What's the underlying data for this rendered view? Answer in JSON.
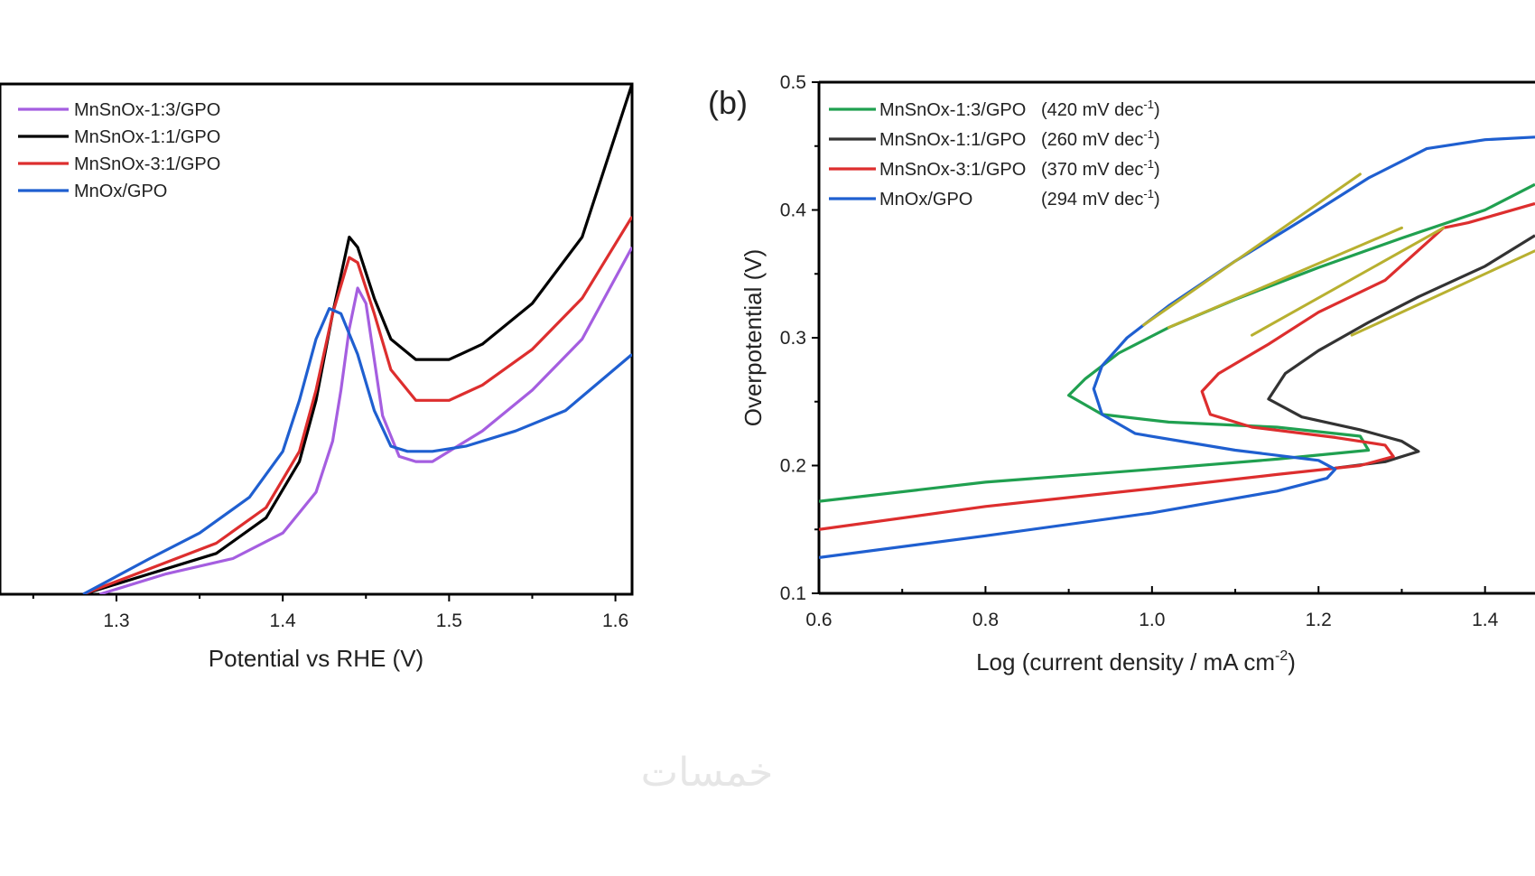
{
  "watermark": "خمسات",
  "chart_data": [
    {
      "type": "line",
      "panel_label": "",
      "title": "",
      "xlabel": "Potential vs RHE (V)",
      "ylabel": "",
      "xlim": [
        1.23,
        1.61
      ],
      "ylim": [
        0,
        1
      ],
      "x_ticks": [
        1.3,
        1.4,
        1.5,
        1.6
      ],
      "x_tick_labels": [
        "1.3",
        "1.4",
        "1.5",
        "1.6"
      ],
      "y_ticks_shown": false,
      "legend_position": "top-left",
      "series": [
        {
          "name": "MnSnOx-1:3/GPO",
          "color": "#a55ee0",
          "points": [
            [
              1.29,
              0.0
            ],
            [
              1.33,
              0.04
            ],
            [
              1.37,
              0.07
            ],
            [
              1.4,
              0.12
            ],
            [
              1.42,
              0.2
            ],
            [
              1.43,
              0.3
            ],
            [
              1.435,
              0.4
            ],
            [
              1.44,
              0.52
            ],
            [
              1.445,
              0.6
            ],
            [
              1.45,
              0.57
            ],
            [
              1.455,
              0.46
            ],
            [
              1.46,
              0.35
            ],
            [
              1.47,
              0.27
            ],
            [
              1.48,
              0.26
            ],
            [
              1.49,
              0.26
            ],
            [
              1.5,
              0.28
            ],
            [
              1.52,
              0.32
            ],
            [
              1.55,
              0.4
            ],
            [
              1.58,
              0.5
            ],
            [
              1.61,
              0.68
            ]
          ]
        },
        {
          "name": "MnSnOx-1:1/GPO",
          "color": "#000000",
          "points": [
            [
              1.28,
              0.0
            ],
            [
              1.32,
              0.04
            ],
            [
              1.36,
              0.08
            ],
            [
              1.39,
              0.15
            ],
            [
              1.41,
              0.26
            ],
            [
              1.42,
              0.38
            ],
            [
              1.43,
              0.55
            ],
            [
              1.44,
              0.7
            ],
            [
              1.445,
              0.68
            ],
            [
              1.455,
              0.58
            ],
            [
              1.465,
              0.5
            ],
            [
              1.48,
              0.46
            ],
            [
              1.5,
              0.46
            ],
            [
              1.52,
              0.49
            ],
            [
              1.55,
              0.57
            ],
            [
              1.58,
              0.7
            ],
            [
              1.61,
              1.0
            ]
          ]
        },
        {
          "name": "MnSnOx-3:1/GPO",
          "color": "#dd2e2e",
          "points": [
            [
              1.28,
              0.0
            ],
            [
              1.32,
              0.05
            ],
            [
              1.36,
              0.1
            ],
            [
              1.39,
              0.17
            ],
            [
              1.41,
              0.28
            ],
            [
              1.42,
              0.4
            ],
            [
              1.43,
              0.55
            ],
            [
              1.44,
              0.66
            ],
            [
              1.445,
              0.65
            ],
            [
              1.455,
              0.55
            ],
            [
              1.465,
              0.44
            ],
            [
              1.48,
              0.38
            ],
            [
              1.5,
              0.38
            ],
            [
              1.52,
              0.41
            ],
            [
              1.55,
              0.48
            ],
            [
              1.58,
              0.58
            ],
            [
              1.61,
              0.74
            ]
          ]
        },
        {
          "name": "MnOx/GPO",
          "color": "#1f5fd0",
          "points": [
            [
              1.28,
              0.0
            ],
            [
              1.32,
              0.07
            ],
            [
              1.35,
              0.12
            ],
            [
              1.38,
              0.19
            ],
            [
              1.4,
              0.28
            ],
            [
              1.41,
              0.38
            ],
            [
              1.42,
              0.5
            ],
            [
              1.428,
              0.56
            ],
            [
              1.435,
              0.55
            ],
            [
              1.445,
              0.47
            ],
            [
              1.455,
              0.36
            ],
            [
              1.465,
              0.29
            ],
            [
              1.475,
              0.28
            ],
            [
              1.49,
              0.28
            ],
            [
              1.51,
              0.29
            ],
            [
              1.54,
              0.32
            ],
            [
              1.57,
              0.36
            ],
            [
              1.61,
              0.47
            ]
          ]
        }
      ]
    },
    {
      "type": "line",
      "panel_label": "(b)",
      "title": "",
      "xlabel": "Log (current density / mA cm-2)",
      "xlabel_parts": {
        "main": "Log (current density / mA cm",
        "sup": "-2",
        "end": ")"
      },
      "ylabel": "Overpotential (V)",
      "xlim": [
        0.6,
        1.46
      ],
      "ylim": [
        0.1,
        0.5
      ],
      "x_ticks": [
        0.6,
        0.8,
        1.0,
        1.2,
        1.4
      ],
      "x_tick_labels": [
        "0.6",
        "0.8",
        "1.0",
        "1.2",
        "1.4"
      ],
      "y_ticks": [
        0.1,
        0.2,
        0.3,
        0.4,
        0.5
      ],
      "y_tick_labels": [
        "0.1",
        "0.2",
        "0.3",
        "0.4",
        "0.5"
      ],
      "legend_position": "top-left",
      "series": [
        {
          "name": "MnSnOx-1:3/GPO",
          "tafel_slope": "(420 mV dec",
          "sup": "-1",
          "end": ")",
          "color": "#20a050",
          "points": [
            [
              0.6,
              0.172
            ],
            [
              0.8,
              0.187
            ],
            [
              1.0,
              0.197
            ],
            [
              1.15,
              0.205
            ],
            [
              1.26,
              0.212
            ],
            [
              1.25,
              0.223
            ],
            [
              1.15,
              0.23
            ],
            [
              1.02,
              0.234
            ],
            [
              0.94,
              0.24
            ],
            [
              0.9,
              0.255
            ],
            [
              0.92,
              0.268
            ],
            [
              0.96,
              0.288
            ],
            [
              1.02,
              0.308
            ],
            [
              1.1,
              0.33
            ],
            [
              1.2,
              0.355
            ],
            [
              1.3,
              0.378
            ],
            [
              1.4,
              0.4
            ],
            [
              1.46,
              0.42
            ]
          ]
        },
        {
          "name": "MnSnOx-1:1/GPO",
          "tafel_slope": "(260 mV dec",
          "sup": "-1",
          "end": ")",
          "color": "#333333",
          "points": [
            [
              1.22,
              0.198
            ],
            [
              1.28,
              0.203
            ],
            [
              1.32,
              0.211
            ],
            [
              1.3,
              0.219
            ],
            [
              1.25,
              0.228
            ],
            [
              1.18,
              0.238
            ],
            [
              1.14,
              0.252
            ],
            [
              1.16,
              0.272
            ],
            [
              1.2,
              0.29
            ],
            [
              1.26,
              0.312
            ],
            [
              1.32,
              0.332
            ],
            [
              1.4,
              0.356
            ],
            [
              1.46,
              0.38
            ]
          ]
        },
        {
          "name": "MnSnOx-3:1/GPO",
          "tafel_slope": "(370 mV dec",
          "sup": "-1",
          "end": ")",
          "color": "#dd2e2e",
          "points": [
            [
              0.6,
              0.15
            ],
            [
              0.8,
              0.168
            ],
            [
              1.0,
              0.182
            ],
            [
              1.15,
              0.193
            ],
            [
              1.25,
              0.2
            ],
            [
              1.29,
              0.207
            ],
            [
              1.28,
              0.216
            ],
            [
              1.22,
              0.222
            ],
            [
              1.12,
              0.23
            ],
            [
              1.07,
              0.24
            ],
            [
              1.06,
              0.258
            ],
            [
              1.08,
              0.272
            ],
            [
              1.14,
              0.295
            ],
            [
              1.2,
              0.32
            ],
            [
              1.28,
              0.345
            ],
            [
              1.35,
              0.386
            ],
            [
              1.38,
              0.39
            ],
            [
              1.46,
              0.405
            ]
          ]
        },
        {
          "name": "MnOx/GPO",
          "tafel_slope": "(294 mV dec",
          "sup": "-1",
          "end": ")",
          "color": "#1f5fd0",
          "points": [
            [
              0.6,
              0.128
            ],
            [
              0.8,
              0.145
            ],
            [
              1.0,
              0.163
            ],
            [
              1.15,
              0.18
            ],
            [
              1.21,
              0.19
            ],
            [
              1.22,
              0.197
            ],
            [
              1.2,
              0.204
            ],
            [
              1.1,
              0.212
            ],
            [
              0.98,
              0.225
            ],
            [
              0.94,
              0.24
            ],
            [
              0.93,
              0.26
            ],
            [
              0.94,
              0.278
            ],
            [
              0.97,
              0.3
            ],
            [
              1.02,
              0.325
            ],
            [
              1.1,
              0.36
            ],
            [
              1.18,
              0.392
            ],
            [
              1.26,
              0.425
            ],
            [
              1.33,
              0.448
            ],
            [
              1.4,
              0.455
            ],
            [
              1.46,
              0.457
            ]
          ]
        }
      ],
      "tafel_fits": [
        {
          "color": "#b8b030",
          "points": [
            [
              0.99,
              0.31
            ],
            [
              1.25,
              0.428
            ]
          ]
        },
        {
          "color": "#b8b030",
          "points": [
            [
              1.02,
              0.308
            ],
            [
              1.3,
              0.386
            ]
          ]
        },
        {
          "color": "#b8b030",
          "points": [
            [
              1.12,
              0.302
            ],
            [
              1.35,
              0.386
            ]
          ]
        },
        {
          "color": "#b8b030",
          "points": [
            [
              1.24,
              0.302
            ],
            [
              1.46,
              0.368
            ]
          ]
        }
      ]
    }
  ]
}
